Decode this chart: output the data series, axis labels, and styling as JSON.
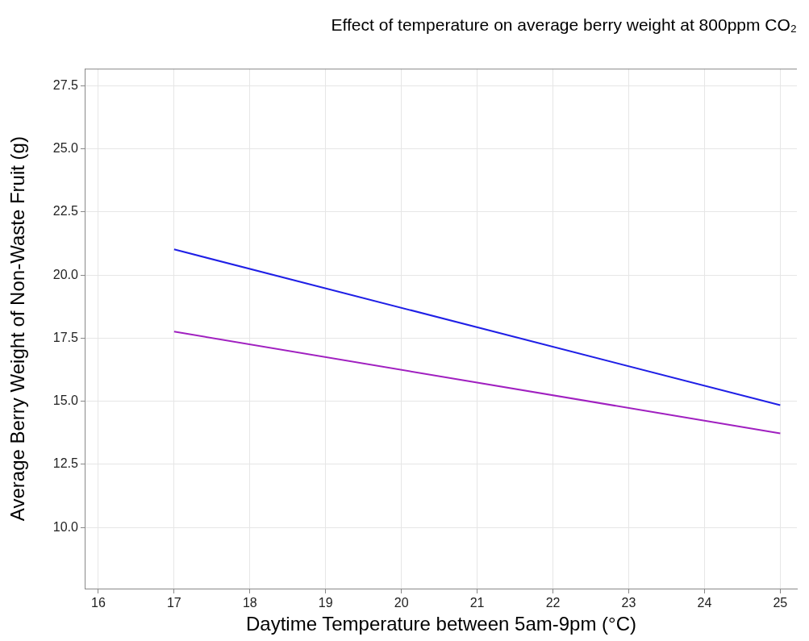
{
  "chart_data": {
    "type": "line",
    "title": "Effect of temperature on average berry weight at 800ppm CO₂",
    "xlabel": "Daytime Temperature between 5am-9pm (°C)",
    "ylabel": "Average Berry Weight of Non-Waste Fruit (g)",
    "x": [
      17,
      25
    ],
    "series": [
      {
        "color": "#1f1fe6",
        "values": [
          21.02,
          14.85
        ]
      },
      {
        "color": "#a020c0",
        "values": [
          17.76,
          13.73
        ]
      }
    ],
    "xlim": [
      15.83,
      25.22
    ],
    "xticks": [
      16,
      17,
      18,
      19,
      20,
      21,
      22,
      23,
      24,
      25
    ],
    "ylim": [
      7.58,
      28.18
    ],
    "yticks": [
      {
        "value": 10,
        "label": "10.0"
      },
      {
        "value": 12.5,
        "label": "12.5"
      },
      {
        "value": 15,
        "label": "15.0"
      },
      {
        "value": 17.5,
        "label": "17.5"
      },
      {
        "value": 20,
        "label": "20.0"
      },
      {
        "value": 22.5,
        "label": "22.5"
      },
      {
        "value": 25,
        "label": "25.0"
      },
      {
        "value": 27.5,
        "label": "27.5"
      }
    ],
    "grid": true,
    "legend": false,
    "marker": "none",
    "line_style": "solid"
  }
}
